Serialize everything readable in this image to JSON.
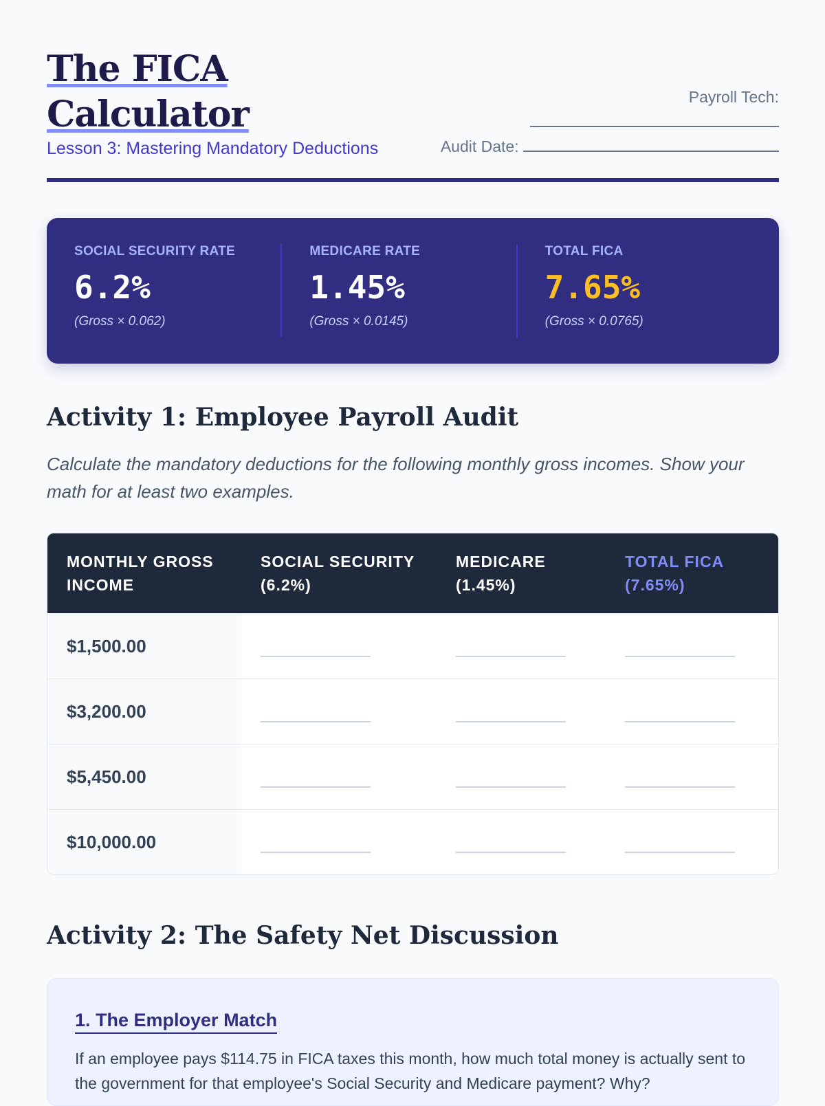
{
  "header": {
    "title_line1": "The FICA",
    "title_line2": "Calculator",
    "subtitle": "Lesson 3: Mastering Mandatory Deductions",
    "payroll_tech_label": "Payroll Tech:",
    "audit_date_label": "Audit Date:"
  },
  "rates": [
    {
      "label": "SOCIAL SECURITY RATE",
      "value": "6.2%",
      "note": "(Gross × 0.062)"
    },
    {
      "label": "MEDICARE RATE",
      "value": "1.45%",
      "note": "(Gross × 0.0145)"
    },
    {
      "label": "TOTAL FICA",
      "value": "7.65%",
      "note": "(Gross × 0.0765)"
    }
  ],
  "activity1": {
    "title": "Activity 1: Employee Payroll Audit",
    "instructions": "Calculate the mandatory deductions for the following monthly gross incomes. Show your math for at least two examples.",
    "columns": [
      "MONTHLY GROSS INCOME",
      "SOCIAL SECURITY (6.2%)",
      "MEDICARE (1.45%)",
      "TOTAL FICA (7.65%)"
    ],
    "rows": [
      "$1,500.00",
      "$3,200.00",
      "$5,450.00",
      "$10,000.00"
    ]
  },
  "activity2": {
    "title": "Activity 2: The Safety Net Discussion",
    "q1_title": "1. The Employer Match",
    "q1_text": "If an employee pays $114.75 in FICA taxes this month, how much total money is actually sent to the government for that employee's Social Security and Medicare payment? Why?"
  },
  "colors": {
    "primary": "#312e81",
    "accent": "#818cf8",
    "gold": "#fbbf24"
  }
}
